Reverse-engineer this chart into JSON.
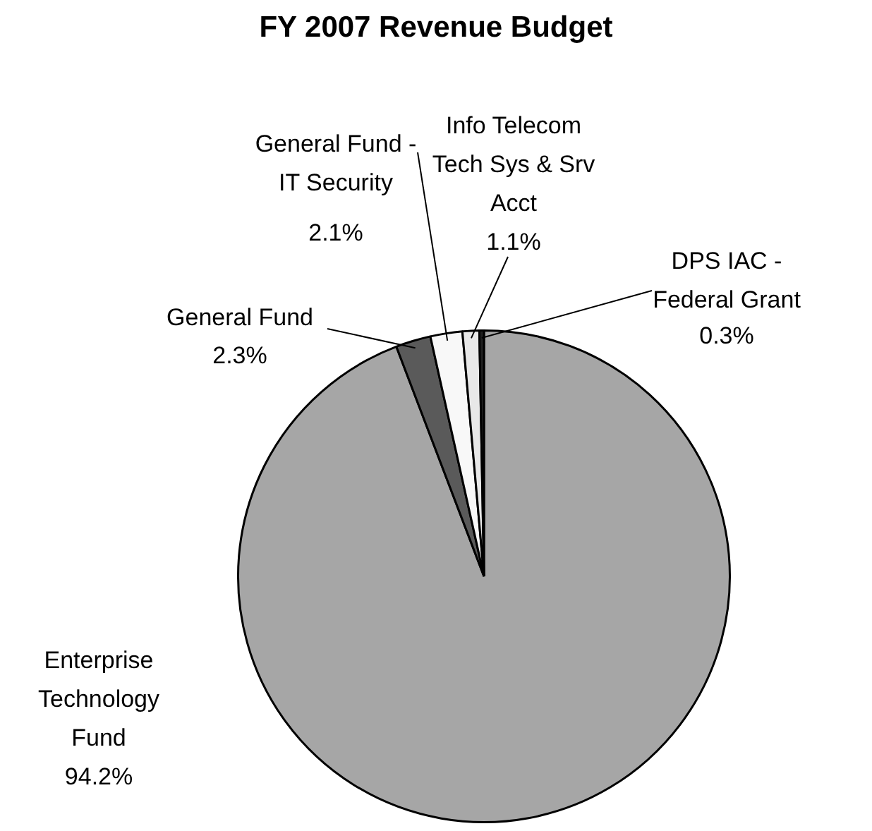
{
  "chart_data": {
    "type": "pie",
    "title": "FY 2007 Revenue Budget",
    "categories": [
      "Enterprise Technology Fund",
      "General Fund",
      "General Fund - IT Security",
      "Info Telecom Tech Sys & Srv Acct",
      "DPS IAC - Federal Grant"
    ],
    "values": [
      94.2,
      2.3,
      2.1,
      1.1,
      0.3
    ],
    "value_labels": [
      "94.2%",
      "2.3%",
      "2.1%",
      "1.1%",
      "0.3%"
    ],
    "colors": [
      "#a6a6a6",
      "#5a5a5a",
      "#f8f8f8",
      "#e8e8e8",
      "#202020"
    ],
    "legend": false
  }
}
